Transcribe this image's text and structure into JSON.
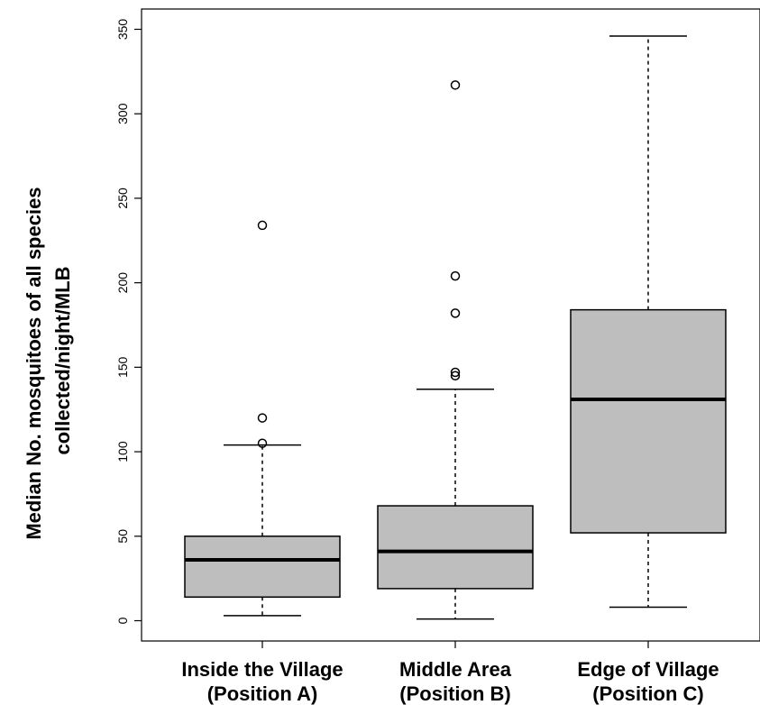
{
  "chart_data": {
    "type": "box",
    "ylabel": [
      "Median No. mosquitoes of all species",
      "collected/night/MLB"
    ],
    "ylim": [
      -12,
      362
    ],
    "yticks": [
      0,
      50,
      100,
      150,
      200,
      250,
      300,
      350
    ],
    "grid": false,
    "categories": [
      [
        "Inside the Village",
        "(Position A)"
      ],
      [
        "Middle Area",
        "(Position B)"
      ],
      [
        "Edge of Village",
        "(Position C)"
      ]
    ],
    "boxes": [
      {
        "whisker_low": 3,
        "q1": 14,
        "median": 36,
        "q3": 50,
        "whisker_high": 104,
        "outliers": [
          105,
          120,
          234
        ]
      },
      {
        "whisker_low": 1,
        "q1": 19,
        "median": 41,
        "q3": 68,
        "whisker_high": 137,
        "outliers": [
          145,
          147,
          182,
          204,
          317
        ]
      },
      {
        "whisker_low": 8,
        "q1": 52,
        "median": 131,
        "q3": 184,
        "whisker_high": 346,
        "outliers": []
      }
    ],
    "box_color": "#bebebe"
  }
}
